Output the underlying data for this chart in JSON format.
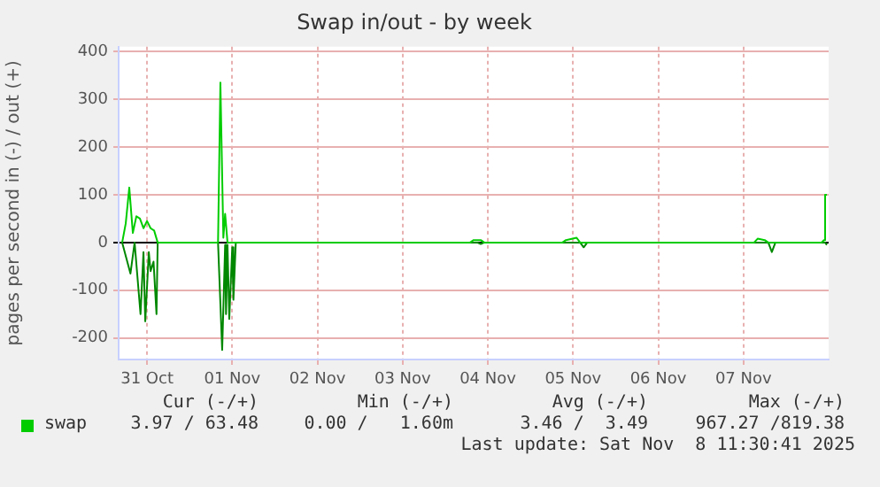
{
  "chart_data": {
    "type": "line",
    "title": "Swap in/out - by week",
    "ylabel": "pages per second in (-) / out (+)",
    "xlim": [
      "2025-10-31T04:00",
      "2025-11-08T12:00"
    ],
    "xticks": [
      {
        "value": "2025-10-31T12:00",
        "label": "31 Oct"
      },
      {
        "value": "2025-11-01T12:00",
        "label": "01 Nov"
      },
      {
        "value": "2025-11-02T12:00",
        "label": "02 Nov"
      },
      {
        "value": "2025-11-03T12:00",
        "label": "03 Nov"
      },
      {
        "value": "2025-11-04T12:00",
        "label": "04 Nov"
      },
      {
        "value": "2025-11-05T12:00",
        "label": "05 Nov"
      },
      {
        "value": "2025-11-06T12:00",
        "label": "06 Nov"
      },
      {
        "value": "2025-11-07T12:00",
        "label": "07 Nov"
      }
    ],
    "ylim": [
      -245,
      410
    ],
    "yticks": [
      -200,
      -100,
      0,
      100,
      200,
      300,
      400
    ],
    "grid": true,
    "legend": "bottom",
    "series": [
      {
        "name": "swap",
        "color": "#00cc00",
        "x": [
          "2025-10-31T05:00",
          "2025-10-31T06:00",
          "2025-10-31T07:00",
          "2025-10-31T08:00",
          "2025-10-31T09:00",
          "2025-10-31T10:00",
          "2025-10-31T11:00",
          "2025-10-31T12:00",
          "2025-10-31T13:00",
          "2025-10-31T14:00",
          "2025-10-31T15:00",
          "2025-11-01T08:00",
          "2025-11-01T08:40",
          "2025-11-01T09:30",
          "2025-11-01T10:00",
          "2025-11-01T10:40",
          "2025-11-04T07:00",
          "2025-11-04T08:00",
          "2025-11-04T10:00",
          "2025-11-04T11:00",
          "2025-11-05T09:00",
          "2025-11-05T10:00",
          "2025-11-05T13:00",
          "2025-11-05T14:00",
          "2025-11-07T15:00",
          "2025-11-07T16:00",
          "2025-11-07T18:00",
          "2025-11-07T19:00",
          "2025-11-08T10:00",
          "2025-11-08T10:40",
          "2025-11-08T11:00",
          "2025-11-08T11:30"
        ],
        "values": [
          0,
          40,
          115,
          20,
          55,
          50,
          30,
          45,
          30,
          25,
          0,
          0,
          335,
          10,
          60,
          0,
          0,
          5,
          5,
          0,
          0,
          5,
          10,
          0,
          0,
          8,
          5,
          0,
          0,
          5,
          100,
          100
        ]
      },
      {
        "color": "#008800",
        "x": [
          "2025-10-31T05:00",
          "2025-10-31T07:20",
          "2025-10-31T08:30",
          "2025-10-31T10:10",
          "2025-10-31T11:00",
          "2025-10-31T11:30",
          "2025-10-31T12:30",
          "2025-10-31T13:00",
          "2025-10-31T13:50",
          "2025-10-31T14:40",
          "2025-10-31T15:00",
          "2025-11-01T08:00",
          "2025-11-01T09:10",
          "2025-11-01T10:00",
          "2025-11-01T10:15",
          "2025-11-01T10:40",
          "2025-11-01T11:10",
          "2025-11-01T12:00",
          "2025-11-01T12:20",
          "2025-11-01T13:00",
          "2025-11-04T09:00",
          "2025-11-04T10:00",
          "2025-11-04T11:00",
          "2025-11-05T14:00",
          "2025-11-05T15:00",
          "2025-11-05T16:00",
          "2025-11-07T19:00",
          "2025-11-07T20:00",
          "2025-11-07T21:00",
          "2025-11-08T11:00",
          "2025-11-08T11:30"
        ],
        "values": [
          0,
          -65,
          0,
          -150,
          -20,
          -165,
          -20,
          -60,
          -40,
          -150,
          0,
          0,
          -225,
          -5,
          -150,
          -5,
          -160,
          -10,
          -120,
          0,
          0,
          -3,
          0,
          0,
          -10,
          0,
          0,
          -20,
          0,
          0,
          -5
        ]
      }
    ],
    "annotations": [
      "Cur (-/+)",
      "Min (-/+)",
      "Avg (-/+)",
      "Max (-/+)",
      "3.97 / 63.48",
      "0.00 /   1.60m",
      "3.46 /  3.49",
      "967.27 /819.38",
      "Last update: Sat Nov  8 11:30:41 2025"
    ]
  }
}
